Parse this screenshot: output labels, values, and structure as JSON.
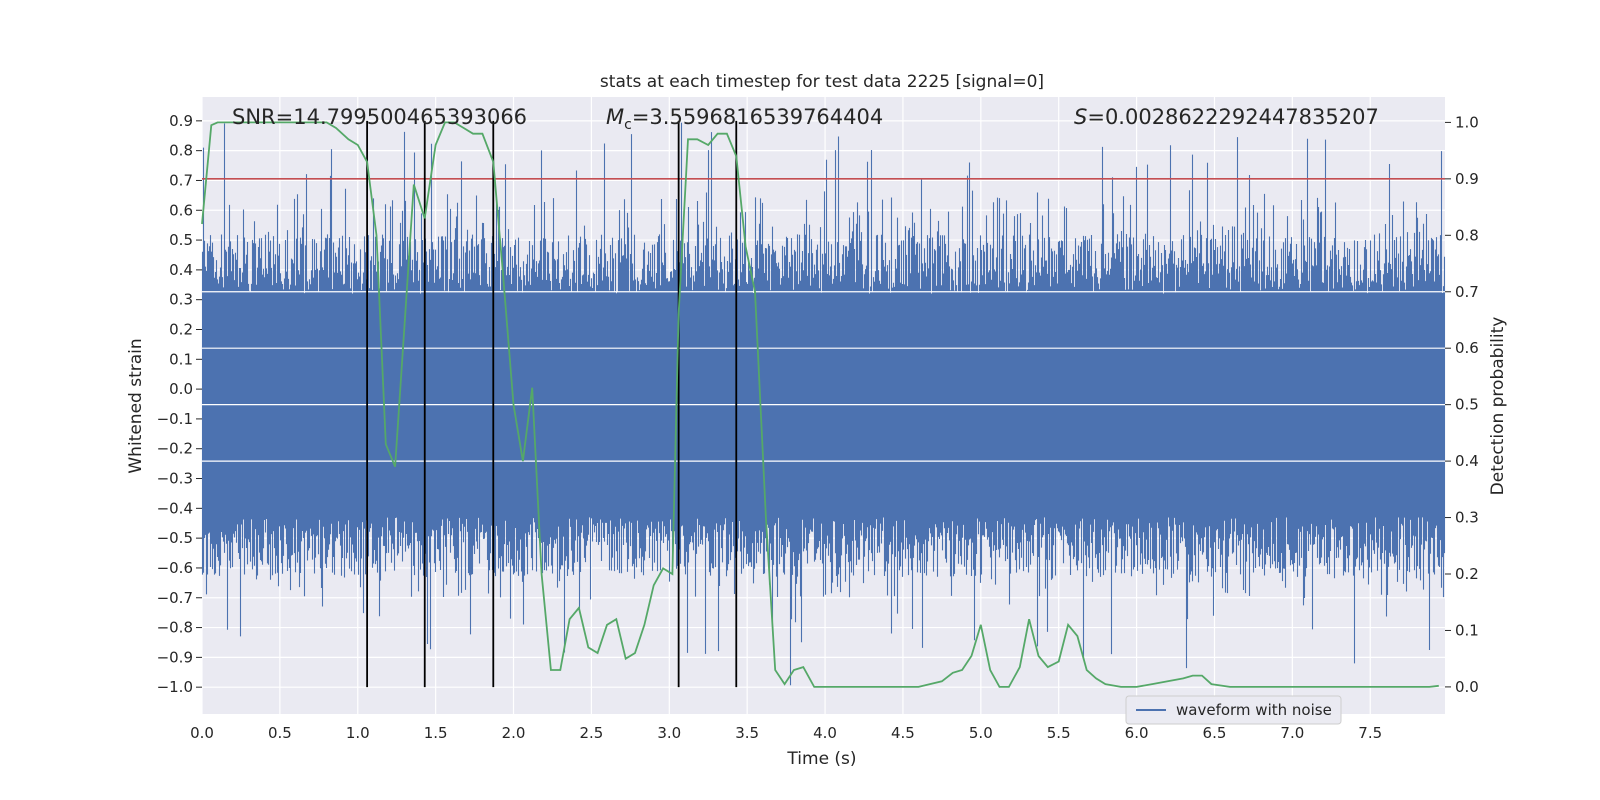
{
  "chart_data": {
    "type": "line",
    "title": "stats at each timestep for test data 2225 [signal=0]",
    "xlabel": "Time (s)",
    "ylabel_left": "Whitened strain",
    "ylabel_right": "Detection probability",
    "xlim": [
      0,
      7.98
    ],
    "ylim_left": [
      -1.09,
      0.98
    ],
    "ylim_right": [
      -0.048,
      1.045
    ],
    "x_ticks": [
      "0.0",
      "0.5",
      "1.0",
      "1.5",
      "2.0",
      "2.5",
      "3.0",
      "3.5",
      "4.0",
      "4.5",
      "5.0",
      "5.5",
      "6.0",
      "6.5",
      "7.0",
      "7.5"
    ],
    "x_tick_values": [
      0,
      0.5,
      1,
      1.5,
      2,
      2.5,
      3,
      3.5,
      4,
      4.5,
      5,
      5.5,
      6,
      6.5,
      7,
      7.5
    ],
    "y_left_ticks": [
      "0.9",
      "0.8",
      "0.7",
      "0.6",
      "0.5",
      "0.4",
      "0.3",
      "0.2",
      "0.1",
      "0.0",
      "−0.1",
      "−0.2",
      "−0.3",
      "−0.4",
      "−0.5",
      "−0.6",
      "−0.7",
      "−0.8",
      "−0.9",
      "−1.0"
    ],
    "y_left_tick_values": [
      0.9,
      0.8,
      0.7,
      0.6,
      0.5,
      0.4,
      0.3,
      0.2,
      0.1,
      0.0,
      -0.1,
      -0.2,
      -0.3,
      -0.4,
      -0.5,
      -0.6,
      -0.7,
      -0.8,
      -0.9,
      -1.0
    ],
    "y_right_ticks": [
      "1.0",
      "0.9",
      "0.8",
      "0.7",
      "0.6",
      "0.5",
      "0.4",
      "0.3",
      "0.2",
      "0.1",
      "0.0"
    ],
    "y_right_tick_values": [
      1.0,
      0.9,
      0.8,
      0.7,
      0.6,
      0.5,
      0.4,
      0.3,
      0.2,
      0.1,
      0.0
    ],
    "annotations": {
      "snr": "SNR=14.799500465393066",
      "mc_symbol": "M",
      "mc_sub": "c",
      "mc_value": "=3.5596816539764404",
      "s_symbol": "S",
      "s_value": "=0.0028622292447835207"
    },
    "threshold": 0.9,
    "detection_markers": [
      1.06,
      1.43,
      1.87,
      3.06,
      3.43
    ],
    "detection_marker_range": [
      -1.0,
      0.9
    ],
    "legend": {
      "label": "waveform with noise",
      "position": "lower-right"
    },
    "series": [
      {
        "name": "waveform with noise",
        "axis": "left",
        "style": "noise",
        "band_low": -0.43,
        "band_high": 0.32,
        "peak_high": 0.9,
        "peak_low": -1.0,
        "samples": 8192
      },
      {
        "name": "Detection probability",
        "axis": "right",
        "x": [
          0.0,
          0.06,
          0.1,
          0.2,
          0.4,
          0.6,
          0.8,
          0.86,
          0.94,
          1.0,
          1.06,
          1.12,
          1.18,
          1.24,
          1.3,
          1.36,
          1.43,
          1.5,
          1.56,
          1.62,
          1.68,
          1.74,
          1.8,
          1.87,
          1.93,
          2.0,
          2.06,
          2.12,
          2.18,
          2.24,
          2.3,
          2.36,
          2.42,
          2.48,
          2.54,
          2.6,
          2.66,
          2.72,
          2.78,
          2.84,
          2.9,
          2.96,
          3.02,
          3.06,
          3.12,
          3.18,
          3.25,
          3.31,
          3.37,
          3.43,
          3.49,
          3.55,
          3.62,
          3.68,
          3.74,
          3.8,
          3.86,
          3.93,
          4.0,
          4.2,
          4.4,
          4.6,
          4.75,
          4.82,
          4.88,
          4.94,
          5.0,
          5.06,
          5.12,
          5.18,
          5.25,
          5.31,
          5.37,
          5.43,
          5.5,
          5.56,
          5.62,
          5.68,
          5.74,
          5.8,
          5.9,
          6.0,
          6.1,
          6.2,
          6.3,
          6.36,
          6.42,
          6.48,
          6.6,
          7.0,
          7.3,
          7.6,
          7.88,
          7.94
        ],
        "y": [
          0.82,
          0.995,
          1.0,
          1.0,
          1.0,
          1.0,
          1.0,
          0.99,
          0.97,
          0.96,
          0.93,
          0.8,
          0.43,
          0.39,
          0.64,
          0.89,
          0.83,
          0.96,
          1.0,
          1.0,
          0.99,
          0.98,
          0.98,
          0.93,
          0.74,
          0.5,
          0.4,
          0.53,
          0.2,
          0.03,
          0.03,
          0.12,
          0.14,
          0.07,
          0.06,
          0.11,
          0.12,
          0.05,
          0.06,
          0.11,
          0.18,
          0.21,
          0.2,
          0.66,
          0.97,
          0.97,
          0.96,
          0.98,
          0.98,
          0.94,
          0.78,
          0.7,
          0.3,
          0.03,
          0.005,
          0.03,
          0.035,
          0.0,
          0.0,
          0.0,
          0.0,
          0.0,
          0.01,
          0.025,
          0.03,
          0.055,
          0.11,
          0.03,
          0.0,
          0.0,
          0.035,
          0.12,
          0.055,
          0.035,
          0.045,
          0.11,
          0.09,
          0.03,
          0.015,
          0.005,
          0.0,
          0.0,
          0.005,
          0.01,
          0.015,
          0.02,
          0.02,
          0.005,
          0.0,
          0.0,
          0.0,
          0.0,
          0.0,
          0.002
        ]
      }
    ]
  }
}
